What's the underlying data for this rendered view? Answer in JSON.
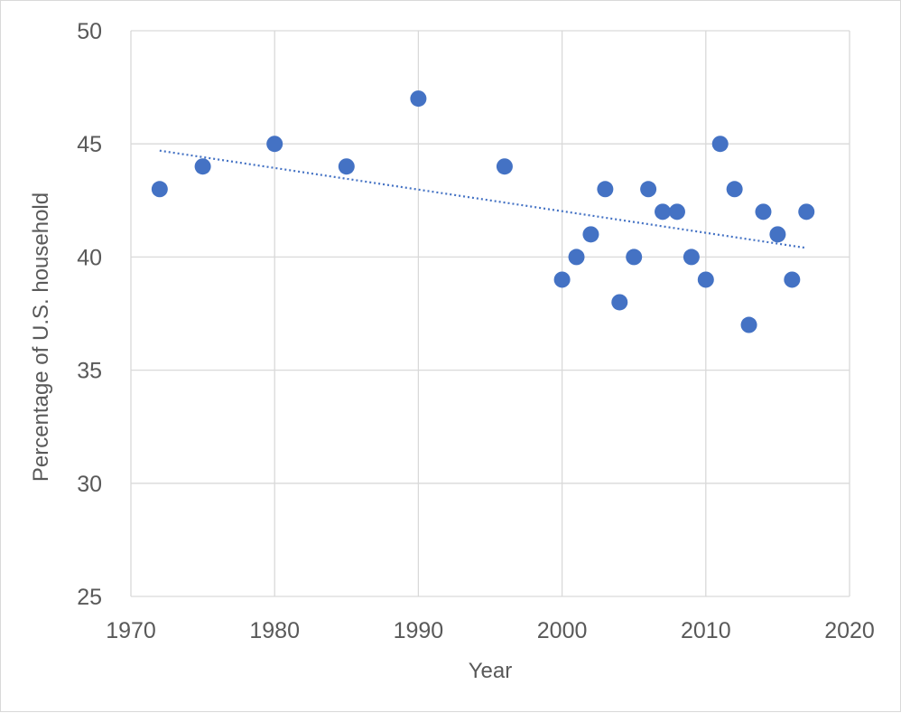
{
  "chart_data": {
    "type": "scatter",
    "title": "",
    "xlabel": "Year",
    "ylabel": "Percentage of U.S. household",
    "xlim": [
      1970,
      2020
    ],
    "ylim": [
      25,
      50
    ],
    "xticks": [
      1970,
      1980,
      1990,
      2000,
      2010,
      2020
    ],
    "yticks": [
      25,
      30,
      35,
      40,
      45,
      50
    ],
    "grid": true,
    "legend": "none",
    "colors": {
      "points": "#4472c4",
      "trendline": "#4472c4",
      "grid": "#d9d9d9",
      "text": "#595959"
    },
    "series": [
      {
        "x": [
          1972,
          1975,
          1980,
          1985,
          1990,
          1996,
          2000,
          2001,
          2002,
          2003,
          2004,
          2005,
          2006,
          2007,
          2008,
          2009,
          2010,
          2011,
          2012,
          2013,
          2014,
          2015,
          2016,
          2017
        ],
        "y": [
          43,
          44,
          45,
          44,
          47,
          44,
          39,
          40,
          41,
          43,
          38,
          40,
          43,
          42,
          42,
          40,
          39,
          45,
          43,
          37,
          42,
          41,
          39,
          42
        ]
      }
    ],
    "trendline": {
      "style": "dotted linear",
      "x": [
        1972,
        2017
      ],
      "y": [
        44.7,
        40.4
      ]
    }
  }
}
